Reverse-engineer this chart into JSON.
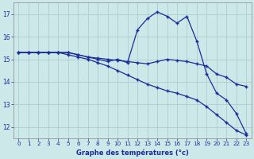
{
  "xlabel": "Graphe des températures (°c)",
  "background_color": "#cce8e8",
  "grid_color": "#b0cccc",
  "line_color": "#1a2d9a",
  "x_ticks": [
    0,
    1,
    2,
    3,
    4,
    5,
    6,
    7,
    8,
    9,
    10,
    11,
    12,
    13,
    14,
    15,
    16,
    17,
    18,
    19,
    20,
    21,
    22,
    23
  ],
  "ylim": [
    11.5,
    17.5
  ],
  "xlim": [
    -0.5,
    23.5
  ],
  "yticks": [
    12,
    13,
    14,
    15,
    16,
    17
  ],
  "series1_x": [
    0,
    1,
    2,
    3,
    4,
    5,
    6,
    7,
    8,
    9,
    10,
    11,
    12,
    13,
    14,
    15,
    16,
    17,
    18,
    19,
    20,
    21,
    22,
    23
  ],
  "series1_y": [
    15.3,
    15.3,
    15.3,
    15.3,
    15.3,
    15.3,
    15.2,
    15.1,
    15.0,
    14.9,
    15.0,
    14.85,
    16.3,
    16.8,
    17.1,
    16.9,
    16.6,
    16.9,
    15.8,
    14.35,
    13.5,
    13.2,
    12.6,
    11.7
  ],
  "series2_x": [
    0,
    1,
    2,
    3,
    4,
    5,
    6,
    7,
    8,
    9,
    10,
    11,
    12,
    13,
    14,
    15,
    16,
    17,
    18,
    19,
    20,
    21,
    22,
    23
  ],
  "series2_y": [
    15.3,
    15.3,
    15.3,
    15.3,
    15.3,
    15.3,
    15.2,
    15.1,
    15.05,
    15.0,
    14.95,
    14.9,
    14.85,
    14.8,
    14.9,
    15.0,
    14.95,
    14.9,
    14.8,
    14.7,
    14.35,
    14.2,
    13.9,
    13.8
  ],
  "series3_x": [
    0,
    1,
    2,
    3,
    4,
    5,
    6,
    7,
    8,
    9,
    10,
    11,
    12,
    13,
    14,
    15,
    16,
    17,
    18,
    19,
    20,
    21,
    22,
    23
  ],
  "series3_y": [
    15.3,
    15.3,
    15.3,
    15.3,
    15.3,
    15.2,
    15.1,
    15.0,
    14.85,
    14.7,
    14.5,
    14.3,
    14.1,
    13.9,
    13.75,
    13.6,
    13.5,
    13.35,
    13.2,
    12.9,
    12.55,
    12.2,
    11.85,
    11.65
  ]
}
